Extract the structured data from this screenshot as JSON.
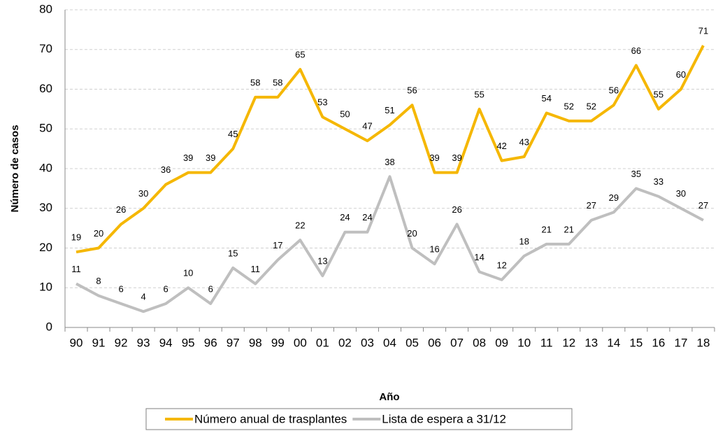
{
  "chart_data": {
    "type": "line",
    "x_label": "Año",
    "y_label": "Número de casos",
    "categories": [
      "90",
      "91",
      "92",
      "93",
      "94",
      "95",
      "96",
      "97",
      "98",
      "99",
      "00",
      "01",
      "02",
      "03",
      "04",
      "05",
      "06",
      "07",
      "08",
      "09",
      "10",
      "11",
      "12",
      "13",
      "14",
      "15",
      "16",
      "17",
      "18"
    ],
    "series": [
      {
        "name": "Número anual de trasplantes",
        "color": "#f5b700",
        "values": [
          19,
          20,
          26,
          30,
          36,
          39,
          39,
          45,
          58,
          58,
          65,
          53,
          50,
          47,
          51,
          56,
          39,
          39,
          55,
          42,
          43,
          54,
          52,
          52,
          56,
          66,
          55,
          60,
          71
        ]
      },
      {
        "name": "Lista de espera a 31/12",
        "color": "#bfbfbf",
        "values": [
          11,
          8,
          6,
          4,
          6,
          10,
          6,
          15,
          11,
          17,
          22,
          13,
          24,
          24,
          38,
          20,
          16,
          26,
          14,
          12,
          18,
          21,
          21,
          27,
          29,
          35,
          33,
          30,
          27
        ]
      }
    ],
    "ylim": [
      0,
      80
    ],
    "yticks": [
      0,
      10,
      20,
      30,
      40,
      50,
      60,
      70,
      80
    ],
    "grid": true,
    "legend": "bottom"
  }
}
